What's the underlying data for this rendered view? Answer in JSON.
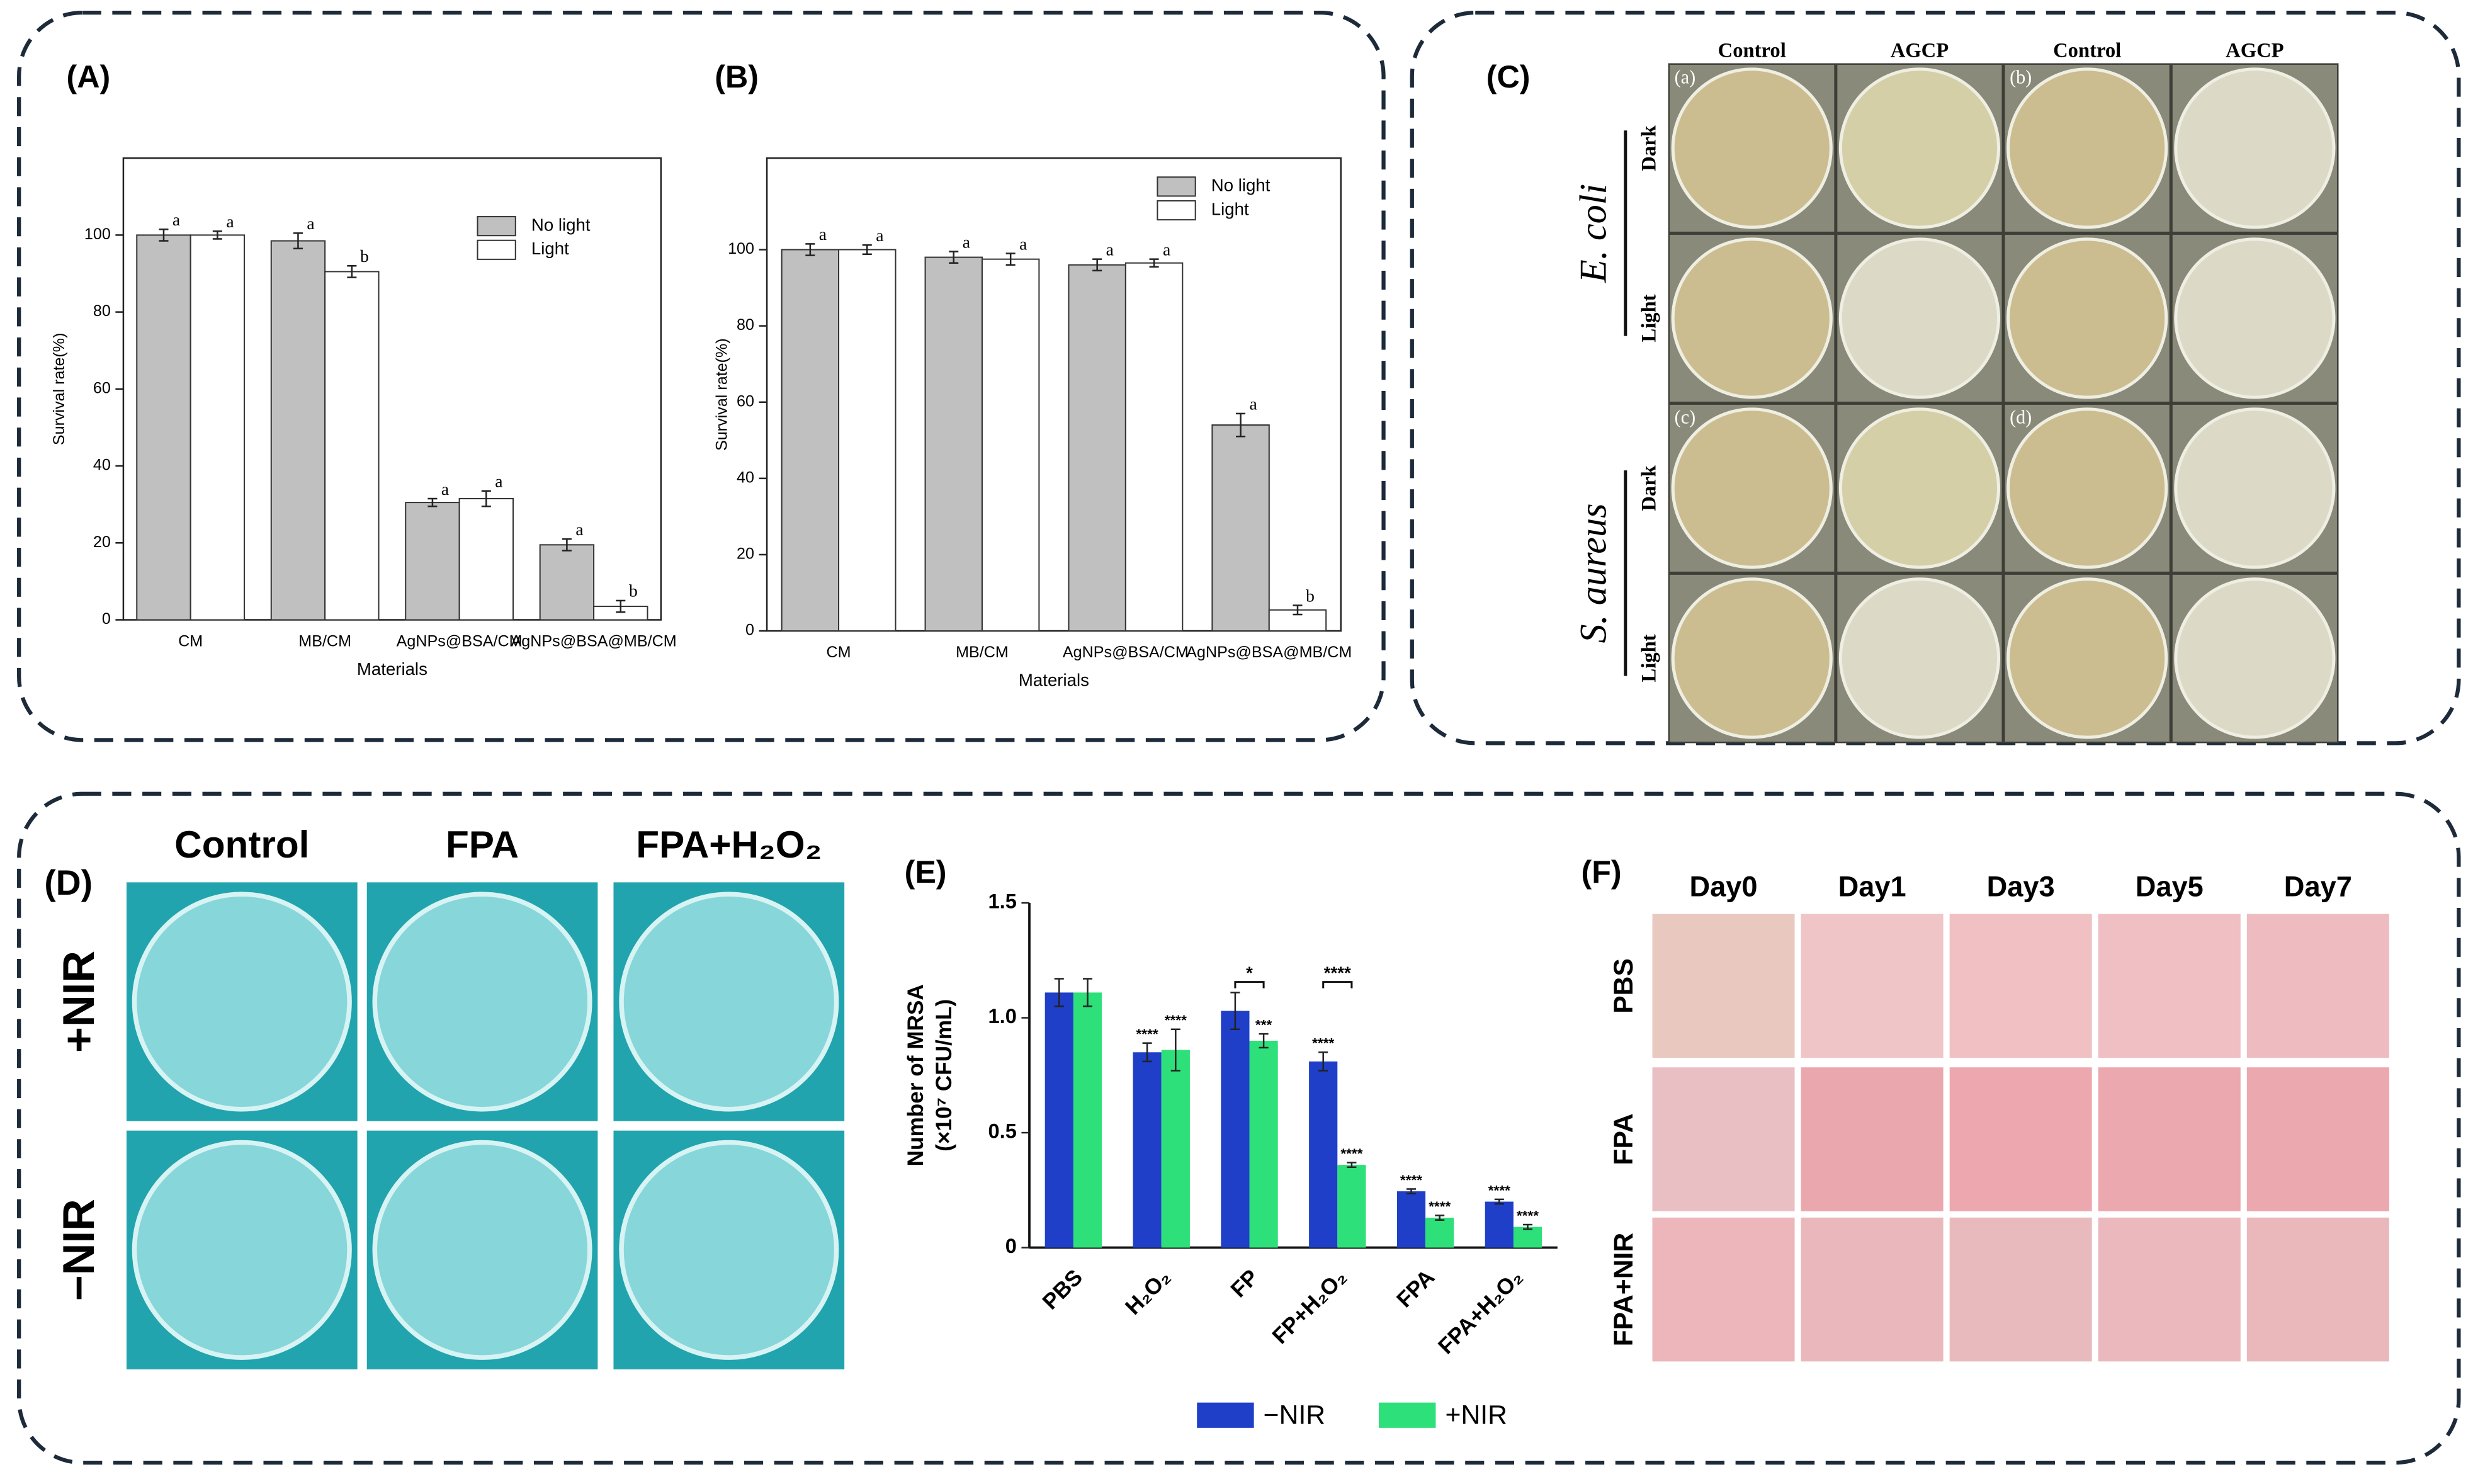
{
  "chart_data": [
    {
      "type": "bar",
      "label": "(A)",
      "xlabel": "Materials",
      "ylabel": "Survival rate(%)",
      "categories": [
        "CM",
        "MB/CM",
        "AgNPs@BSA/CM",
        "AgNPs@BSA@MB/CM"
      ],
      "series": [
        {
          "name": "No light",
          "color": "#c0c0c0",
          "values": [
            100,
            98.5,
            30.5,
            19.5
          ],
          "errors": [
            1.5,
            2,
            1,
            1.5
          ],
          "annotations": [
            "a",
            "a",
            "a",
            "a"
          ]
        },
        {
          "name": "Light",
          "color": "#ffffff",
          "values": [
            100,
            90.5,
            31.5,
            3.5
          ],
          "errors": [
            1,
            1.5,
            2,
            1.5
          ],
          "annotations": [
            "a",
            "b",
            "a",
            "b"
          ]
        }
      ],
      "ylim": [
        0,
        120
      ],
      "yticks": [
        0,
        20,
        40,
        60,
        80,
        100
      ]
    },
    {
      "type": "bar",
      "label": "(B)",
      "xlabel": "Materials",
      "ylabel": "Survival rate(%)",
      "categories": [
        "CM",
        "MB/CM",
        "AgNPs@BSA/CM",
        "AgNPs@BSA@MB/CM"
      ],
      "series": [
        {
          "name": "No light",
          "color": "#c0c0c0",
          "values": [
            100,
            98,
            96,
            54
          ],
          "errors": [
            1.5,
            1.5,
            1.5,
            3
          ],
          "annotations": [
            "a",
            "a",
            "a",
            "a"
          ]
        },
        {
          "name": "Light",
          "color": "#ffffff",
          "values": [
            100,
            97.5,
            96.5,
            5.5
          ],
          "errors": [
            1.2,
            1.5,
            1,
            1.2
          ],
          "annotations": [
            "a",
            "a",
            "a",
            "b"
          ]
        }
      ],
      "ylim": [
        0,
        124
      ],
      "yticks": [
        0,
        20,
        40,
        60,
        80,
        100
      ]
    },
    {
      "type": "bar",
      "label": "(E)",
      "ylabel": [
        "Number of MRSA",
        "(×10⁷ CFU/mL)"
      ],
      "categories": [
        "PBS",
        "H₂O₂",
        "FP",
        "FP+H₂O₂",
        "FPA",
        "FPA+H₂O₂"
      ],
      "series": [
        {
          "name": "−NIR",
          "color": "#1f3fc8",
          "values": [
            1.11,
            0.85,
            1.03,
            0.81,
            0.245,
            0.2
          ],
          "errors": [
            0.06,
            0.04,
            0.08,
            0.04,
            0.01,
            0.01
          ],
          "annotations": [
            null,
            "****",
            null,
            "****",
            "****",
            "****"
          ]
        },
        {
          "name": "+NIR",
          "color": "#2ee07a",
          "values": [
            1.11,
            0.86,
            0.9,
            0.36,
            0.13,
            0.09
          ],
          "errors": [
            0.06,
            0.09,
            0.03,
            0.01,
            0.01,
            0.01
          ],
          "annotations": [
            null,
            "****",
            "***",
            "****",
            "****",
            "****"
          ]
        }
      ],
      "brackets": [
        {
          "at": 2,
          "label": "*"
        },
        {
          "at": 3,
          "label": "****"
        }
      ],
      "ylim": [
        0,
        1.5
      ],
      "yticks": [
        0,
        0.5,
        {
          "value": 1,
          "label": "1.0"
        },
        1.5
      ]
    }
  ],
  "panel_c": {
    "label": "(C)",
    "columns": [
      "Control",
      "AGCP",
      "Control",
      "AGCP"
    ],
    "plates": [
      "(a)",
      "(b)",
      "(c)",
      "(d)"
    ],
    "rows": [
      "Dark",
      "Light",
      "Dark",
      "Light"
    ],
    "species": [
      "E. coli",
      "S. aureus"
    ]
  },
  "panel_d": {
    "label": "(D)",
    "columns": [
      "Control",
      "FPA",
      "FPA+H₂O₂"
    ],
    "rows": [
      "+NIR",
      "−NIR"
    ]
  },
  "panel_f": {
    "label": "(F)",
    "columns": [
      "Day0",
      "Day1",
      "Day3",
      "Day5",
      "Day7"
    ],
    "rows": [
      "PBS",
      "FPA",
      "FPA+NIR"
    ]
  }
}
